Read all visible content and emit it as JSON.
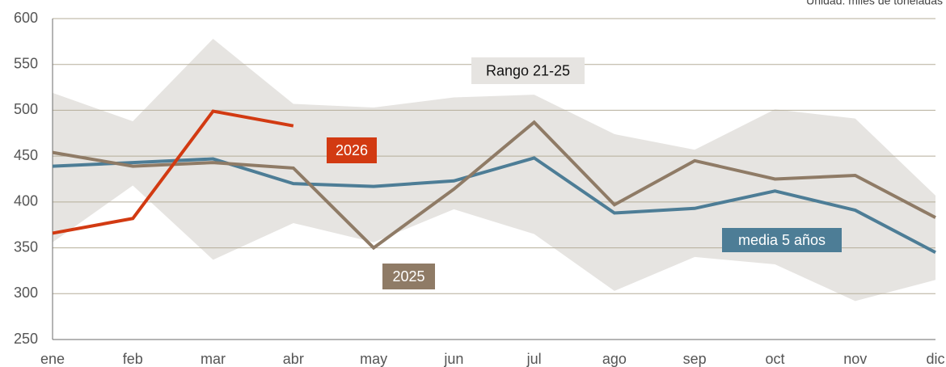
{
  "chart_data": {
    "type": "line",
    "subtitle": "Unidad: miles de toneladas",
    "categories": [
      "ene",
      "feb",
      "mar",
      "abr",
      "may",
      "jun",
      "jul",
      "ago",
      "sep",
      "oct",
      "nov",
      "dic"
    ],
    "ylim": [
      250,
      600
    ],
    "yticks": [
      250,
      300,
      350,
      400,
      450,
      500,
      550,
      600
    ],
    "grid": true,
    "band": {
      "name": "Rango 21-25",
      "color": "#e6e4e1",
      "upper": [
        519,
        488,
        578,
        507,
        503,
        514,
        517,
        474,
        457,
        501,
        491,
        407
      ],
      "lower": [
        356,
        418,
        337,
        377,
        356,
        392,
        365,
        303,
        340,
        332,
        292,
        315
      ]
    },
    "series": [
      {
        "name": "media 5 años",
        "color": "#4d7d96",
        "values": [
          439,
          443,
          447,
          420,
          417,
          423,
          448,
          388,
          393,
          412,
          391,
          345
        ]
      },
      {
        "name": "2025",
        "color": "#8f7b66",
        "values": [
          454,
          439,
          443,
          437,
          350,
          414,
          487,
          397,
          445,
          425,
          429,
          383
        ]
      },
      {
        "name": "2026",
        "color": "#d23a12",
        "values": [
          366,
          382,
          499,
          483,
          null,
          null,
          null,
          null,
          null,
          null,
          null,
          null
        ]
      }
    ]
  }
}
